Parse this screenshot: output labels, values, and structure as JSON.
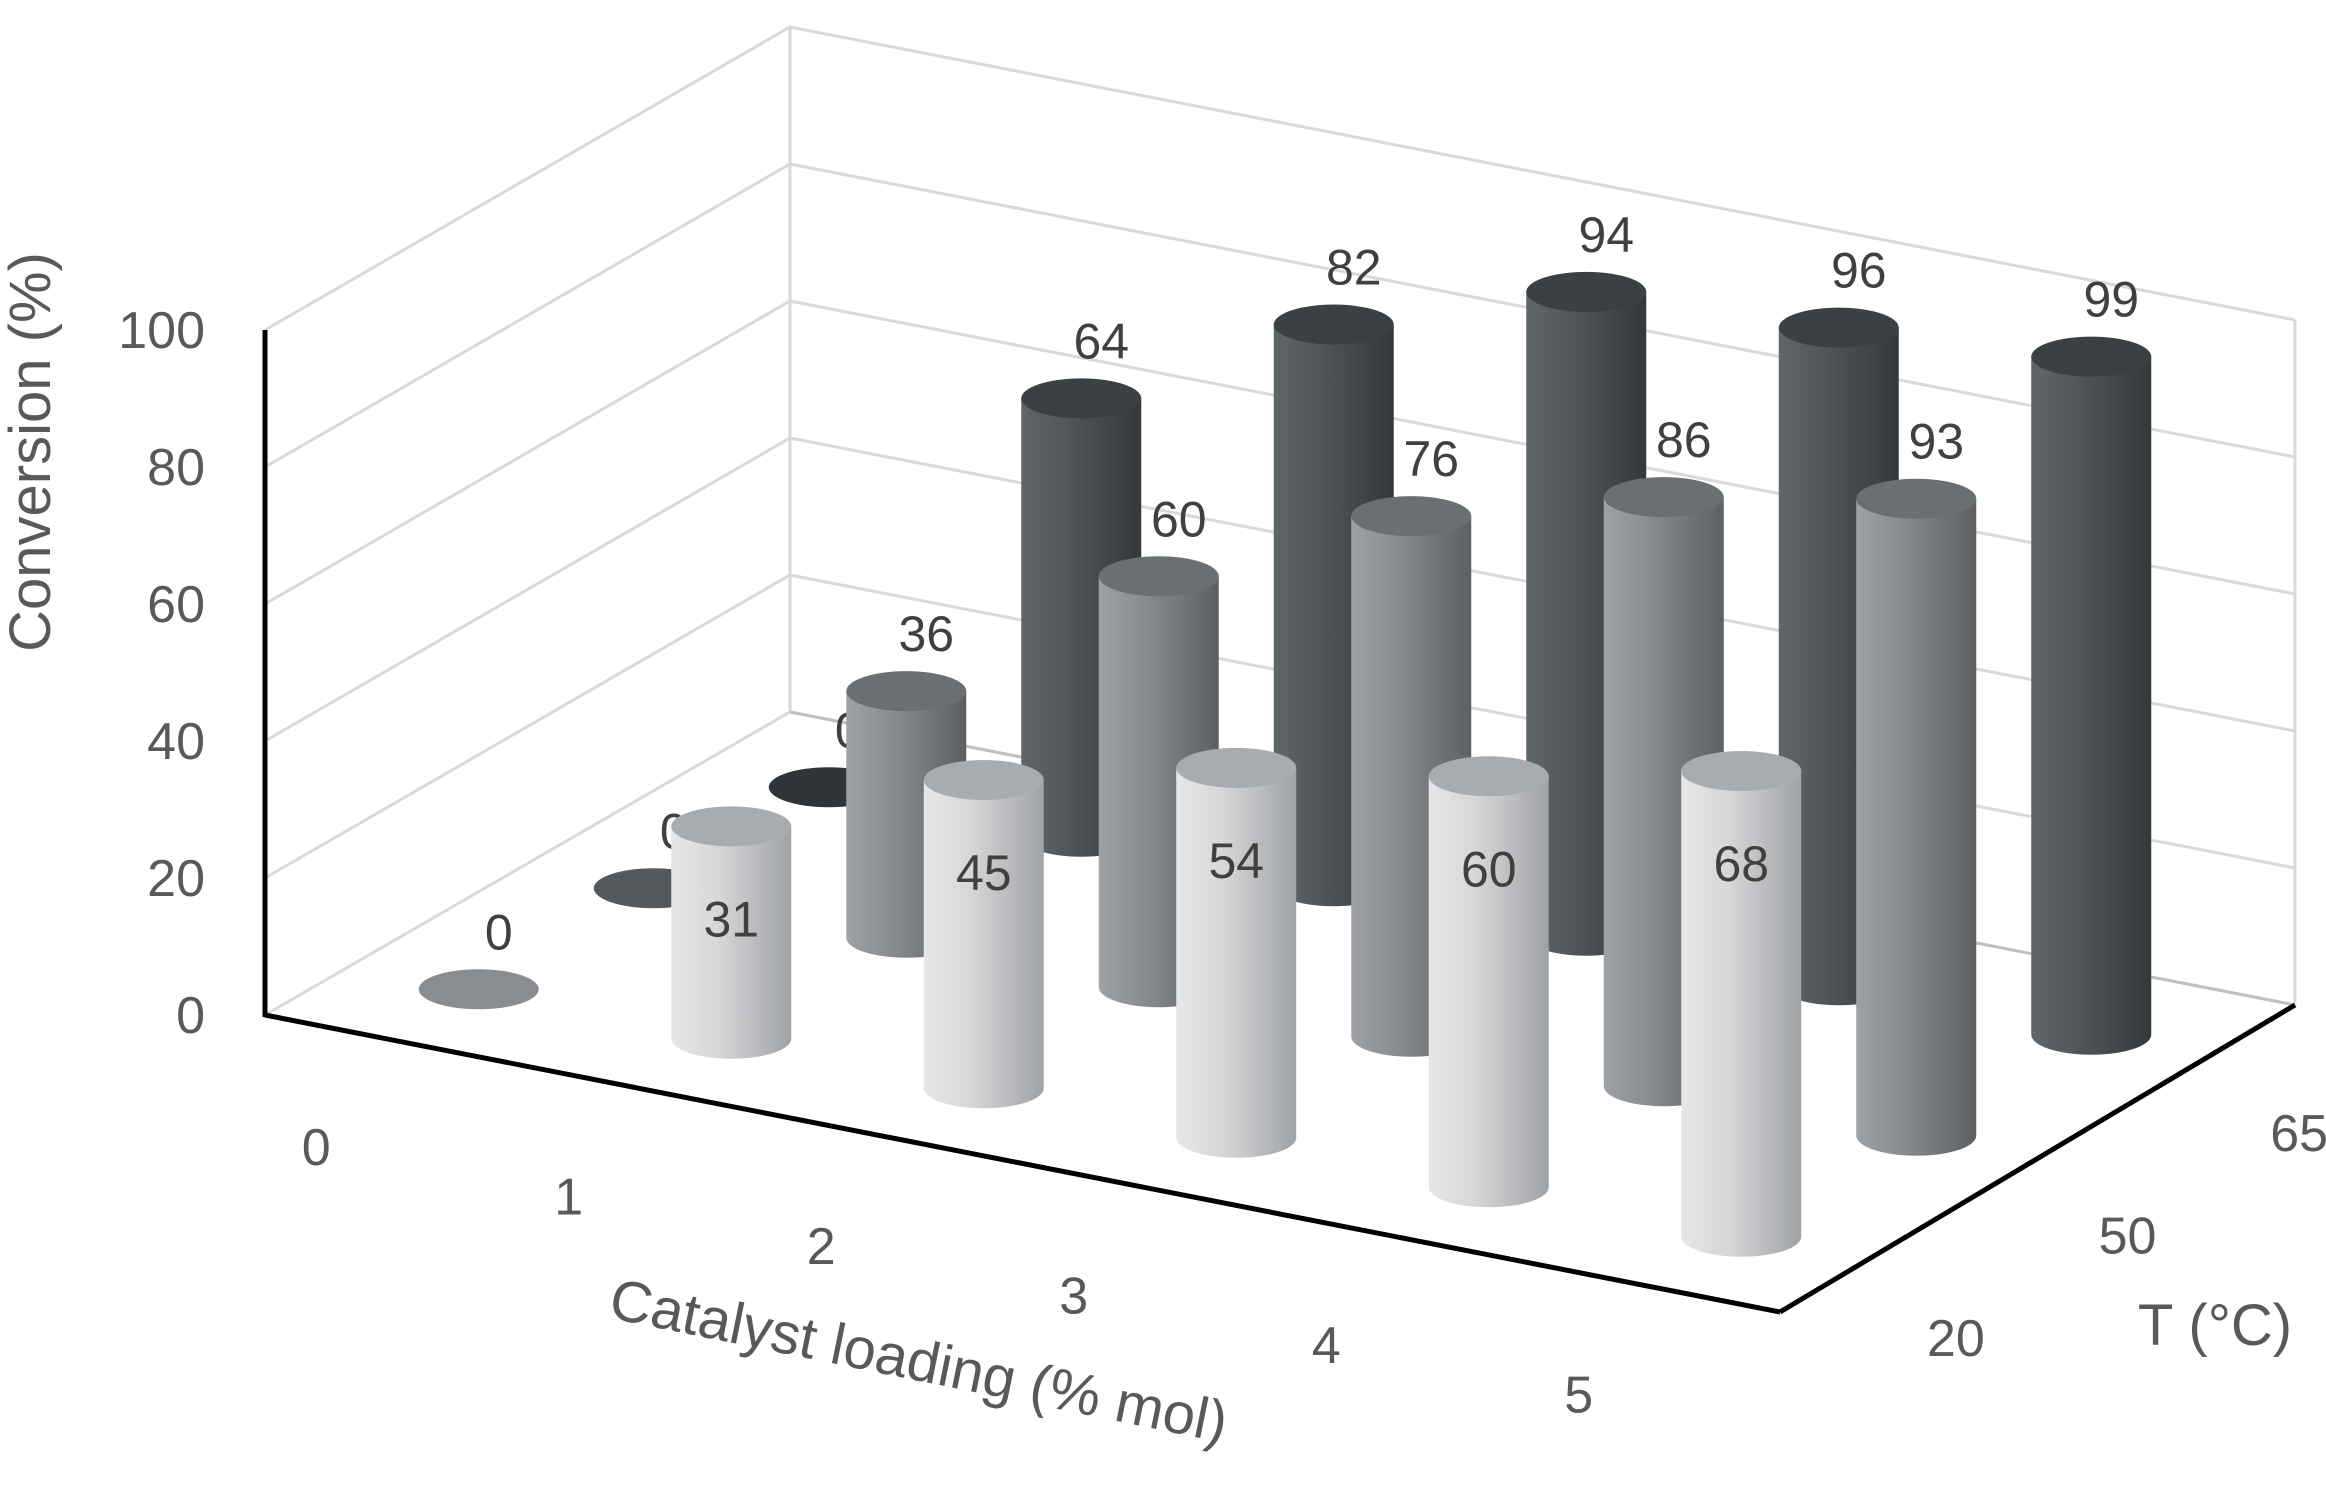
{
  "chart_data": {
    "type": "bar",
    "subtype": "3d-cylinder",
    "title": "",
    "ylabel": "Conversion (%)",
    "xlabel": "Catalyst loading (% mol)",
    "zlabel": "T (°C)",
    "ylim": [
      0,
      100
    ],
    "yticks": [
      "0",
      "20",
      "40",
      "60",
      "80",
      "100"
    ],
    "categories": [
      "0",
      "1",
      "2",
      "3",
      "4",
      "5"
    ],
    "series": [
      {
        "name": "20",
        "color": "#c8c9cb",
        "top": "#a9acae",
        "dark": "#8a8d90",
        "values": [
          0,
          31,
          45,
          54,
          60,
          68
        ],
        "labels": [
          "0",
          "31",
          "45",
          "54",
          "60",
          "68"
        ]
      },
      {
        "name": "50",
        "color": "#7f8487",
        "top": "#6a6f72",
        "dark": "#55595c",
        "values": [
          0,
          36,
          60,
          76,
          86,
          93
        ],
        "labels": [
          "0",
          "36",
          "60",
          "76",
          "86",
          "93"
        ]
      },
      {
        "name": "65",
        "color": "#4b5254",
        "top": "#3b4143",
        "dark": "#2f3436",
        "values": [
          0,
          64,
          82,
          94,
          96,
          99
        ],
        "labels": [
          "0",
          "64",
          "82",
          "94",
          "96",
          "99"
        ]
      }
    ],
    "grid": true,
    "legend": "none"
  }
}
